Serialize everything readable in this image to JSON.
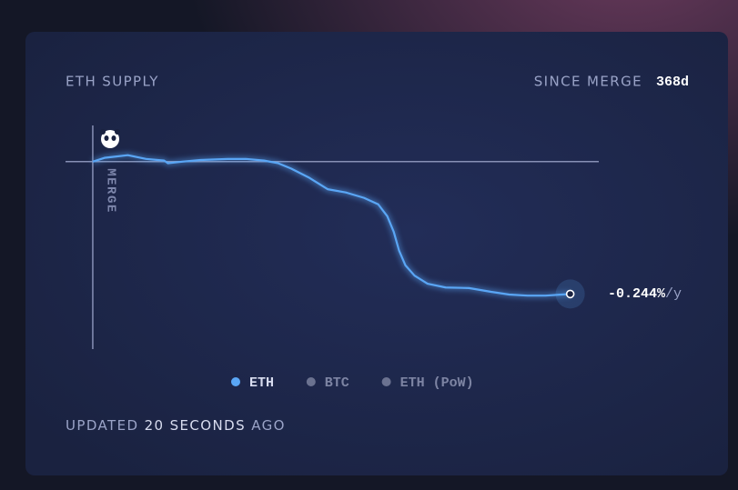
{
  "chart_data": {
    "type": "line",
    "title": "ETH SUPPLY",
    "since_label": "SINCE MERGE",
    "since_value": "368d",
    "annotation": "MERGE",
    "end_label": "-0.244%",
    "end_unit": "/y",
    "footer": {
      "prefix": "UPDATED",
      "value": "20 SECONDS",
      "suffix": "AGO"
    },
    "x": [
      0,
      9,
      27,
      41,
      55,
      58,
      69,
      83,
      104,
      118,
      132,
      143,
      153,
      167,
      181,
      195,
      209,
      220,
      227,
      232,
      236,
      241,
      248,
      258,
      272,
      290,
      307,
      321,
      335,
      349,
      368
    ],
    "xlim": [
      -21,
      390
    ],
    "ylim": [
      -0.347,
      0.067
    ],
    "legend": "bottom",
    "series": [
      {
        "name": "ETH",
        "color": "#5aa6f5",
        "active": true,
        "values": [
          0,
          0.007,
          0.012,
          0.005,
          0.002,
          -0.003,
          0,
          0.003,
          0.005,
          0.005,
          0.002,
          -0.003,
          -0.013,
          -0.03,
          -0.051,
          -0.057,
          -0.067,
          -0.079,
          -0.101,
          -0.13,
          -0.164,
          -0.192,
          -0.211,
          -0.226,
          -0.233,
          -0.234,
          -0.241,
          -0.246,
          -0.248,
          -0.248,
          -0.245
        ]
      },
      {
        "name": "BTC",
        "color": "#6b7290",
        "active": false,
        "values": [
          null,
          null,
          null,
          null,
          null,
          null,
          null,
          null,
          null,
          null,
          null,
          null,
          null,
          null,
          null,
          null,
          null,
          null,
          null,
          null,
          null,
          null,
          null,
          null,
          null,
          null,
          null,
          null,
          null,
          null,
          null
        ]
      },
      {
        "name": "ETH (PoW)",
        "color": "#6b7290",
        "active": false,
        "values": [
          null,
          null,
          null,
          null,
          null,
          null,
          null,
          null,
          null,
          null,
          null,
          null,
          null,
          null,
          null,
          null,
          null,
          null,
          null,
          null,
          null,
          null,
          null,
          null,
          null,
          null,
          null,
          null,
          null,
          null,
          null
        ]
      }
    ]
  }
}
